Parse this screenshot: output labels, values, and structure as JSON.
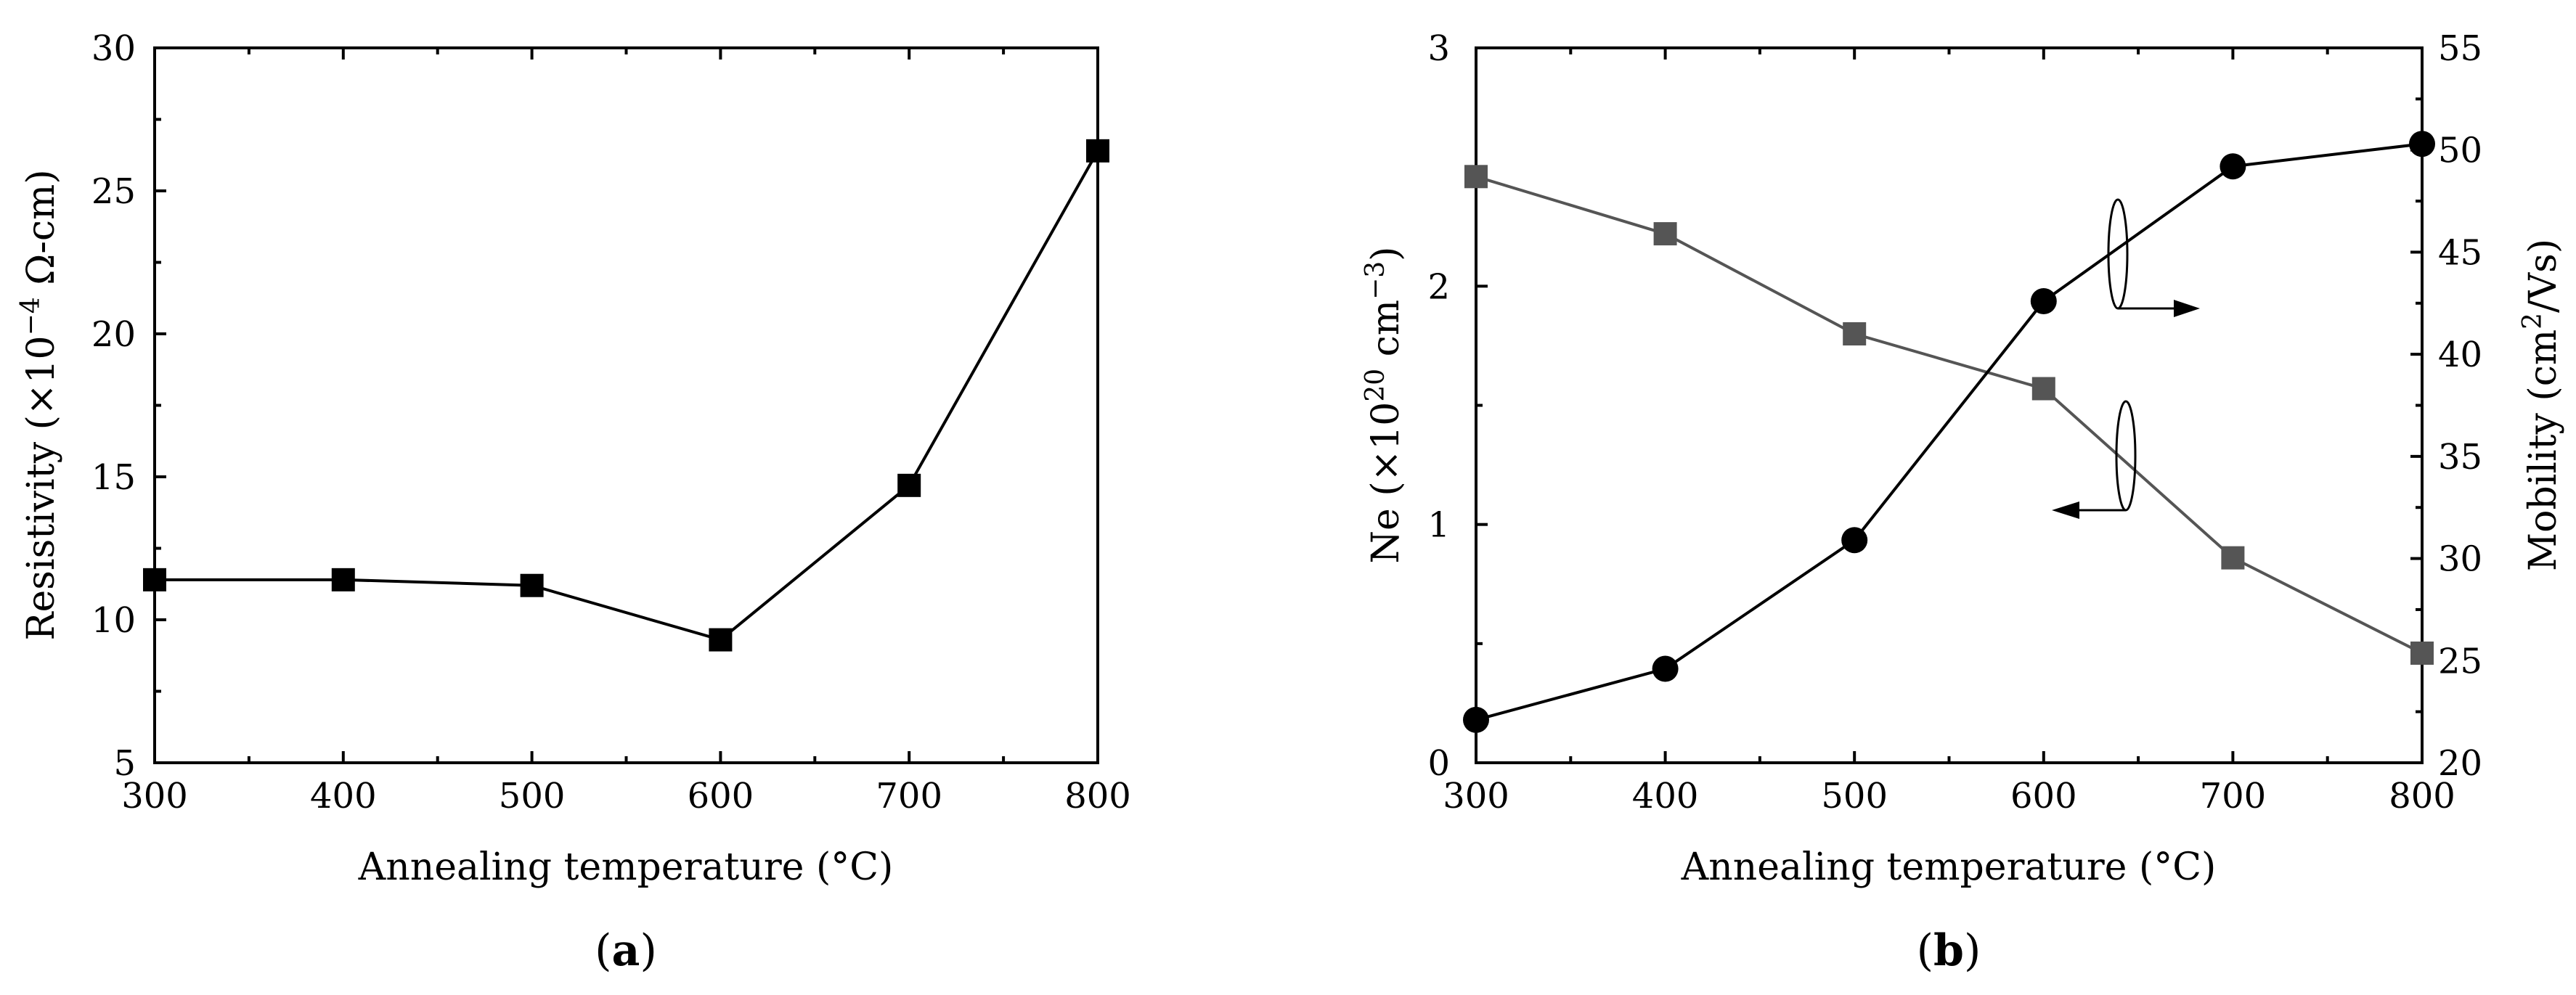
{
  "chart_data": [
    {
      "panel_label": "a",
      "type": "line",
      "xlabel": "Annealing temperature (°C)",
      "ylabel": {
        "prefix": "Resistivity (×10",
        "exponent": "−4",
        "suffix": " Ω-cm)"
      },
      "xlim": [
        300,
        800
      ],
      "ylim": [
        5,
        30
      ],
      "xticks": [
        300,
        400,
        500,
        600,
        700,
        800
      ],
      "yticks": [
        5,
        10,
        15,
        20,
        25,
        30
      ],
      "series": [
        {
          "name": "Resistivity",
          "marker": "square",
          "color": "#000000",
          "x": [
            300,
            400,
            500,
            600,
            700,
            800
          ],
          "y": [
            11.4,
            11.4,
            11.2,
            9.3,
            14.7,
            26.4
          ]
        }
      ]
    },
    {
      "panel_label": "b",
      "type": "line",
      "xlabel": "Annealing temperature (°C)",
      "ylabel_left": {
        "prefix": "Ne (×10",
        "exponent": "20",
        "suffix": " cm",
        "exponent2": "−3",
        "suffix2": ")"
      },
      "ylabel_right": {
        "prefix": "Mobility (cm",
        "exponent": "2",
        "suffix": "/Vs)"
      },
      "xlim": [
        300,
        800
      ],
      "ylim_left": [
        0,
        3
      ],
      "ylim_right": [
        20,
        55
      ],
      "xticks": [
        300,
        400,
        500,
        600,
        700,
        800
      ],
      "yticks_left": [
        0,
        1,
        2,
        3
      ],
      "yticks_right": [
        20,
        25,
        30,
        35,
        40,
        45,
        50,
        55
      ],
      "series": [
        {
          "name": "Ne",
          "axis": "left",
          "marker": "square",
          "color": "#555555",
          "x": [
            300,
            400,
            500,
            600,
            700,
            800
          ],
          "y": [
            2.46,
            2.22,
            1.8,
            1.57,
            0.86,
            0.46
          ]
        },
        {
          "name": "Mobility",
          "axis": "right",
          "marker": "circle",
          "color": "#000000",
          "x": [
            300,
            400,
            500,
            600,
            700,
            800
          ],
          "y": [
            22.1,
            24.6,
            30.9,
            42.6,
            49.2,
            50.3
          ]
        }
      ]
    }
  ]
}
